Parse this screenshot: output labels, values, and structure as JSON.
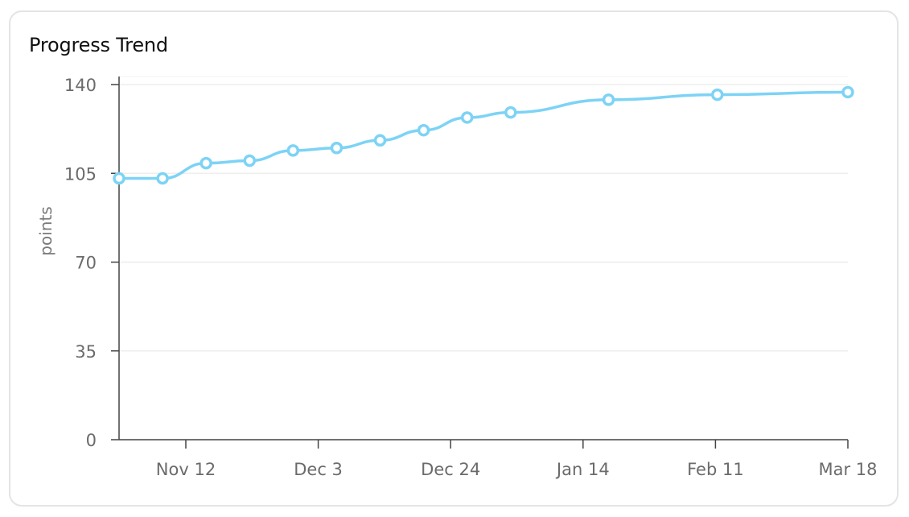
{
  "chart_data": {
    "type": "line",
    "title": "Progress Trend",
    "xlabel": "",
    "ylabel": "points",
    "ylim": [
      0,
      140
    ],
    "yticks": [
      0,
      35,
      70,
      105,
      140
    ],
    "xticks": [
      "Nov 12",
      "Dec 3",
      "Dec 24",
      "Jan 14",
      "Feb 11",
      "Mar 18"
    ],
    "grid": true,
    "series": [
      {
        "color": "#7dd3f5",
        "x": [
          "Nov 4",
          "Nov 12",
          "Nov 20",
          "Nov 28",
          "Dec 6",
          "Dec 14",
          "Dec 22",
          "Dec 30",
          "Jan 7",
          "Jan 15",
          "Feb 2",
          "Feb 22",
          "Mar 18"
        ],
        "values": [
          103,
          103,
          109,
          110,
          114,
          115,
          118,
          122,
          127,
          129,
          134,
          136,
          137
        ]
      }
    ]
  }
}
